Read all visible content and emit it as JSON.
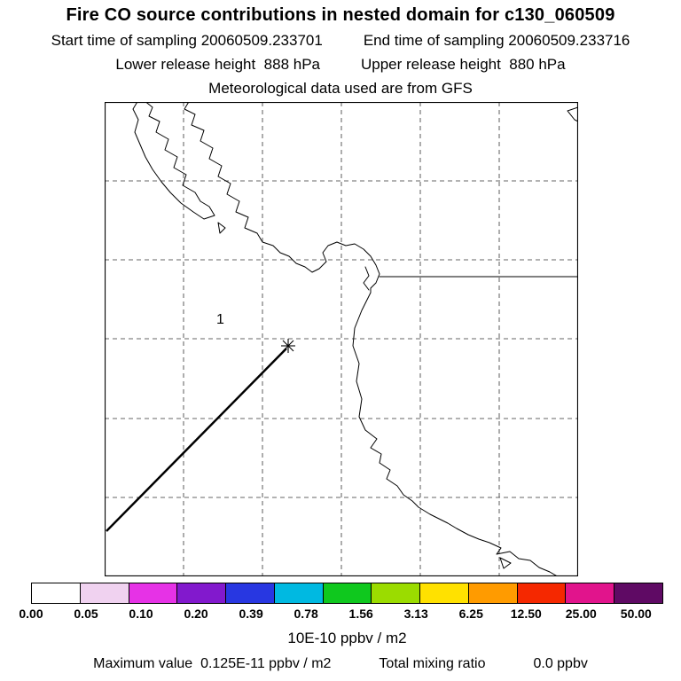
{
  "header": {
    "title": "Fire CO source contributions in nested domain for c130_060509",
    "start_time": "Start time of sampling 20060509.233701",
    "end_time": "End time of sampling 20060509.233716",
    "lower_release": "Lower release height  888 hPa",
    "upper_release": "Upper release height  880 hPa",
    "met_source": "Meteorological data used are from GFS"
  },
  "map": {
    "source_marker_label": "1"
  },
  "chart_data": {
    "type": "heatmap",
    "title": "Fire CO source contributions in nested domain for c130_060509",
    "grid": true,
    "legend_position": "bottom",
    "colorbar": {
      "levels": [
        "0.00",
        "0.05",
        "0.10",
        "0.20",
        "0.39",
        "0.78",
        "1.56",
        "3.13",
        "6.25",
        "12.50",
        "25.00",
        "50.00"
      ],
      "colors": [
        "#ffffff",
        "#f0d2f0",
        "#e632e6",
        "#8219cd",
        "#2837e1",
        "#00b9e1",
        "#0fc81e",
        "#9bdc00",
        "#ffe100",
        "#ff9b00",
        "#f52800",
        "#e1148c",
        "#5f0a64"
      ],
      "unit": "10E-10 ppbv / m2"
    },
    "source_marker_label": "1",
    "max_value": "0.125E-11 ppbv / m2",
    "total_mixing_ratio": "0.0 ppbv"
  },
  "footer": {
    "max_value_text": "Maximum value  0.125E-11 ppbv / m2",
    "total_mixing_label": "Total mixing ratio",
    "total_mixing_value": "0.0 ppbv"
  }
}
